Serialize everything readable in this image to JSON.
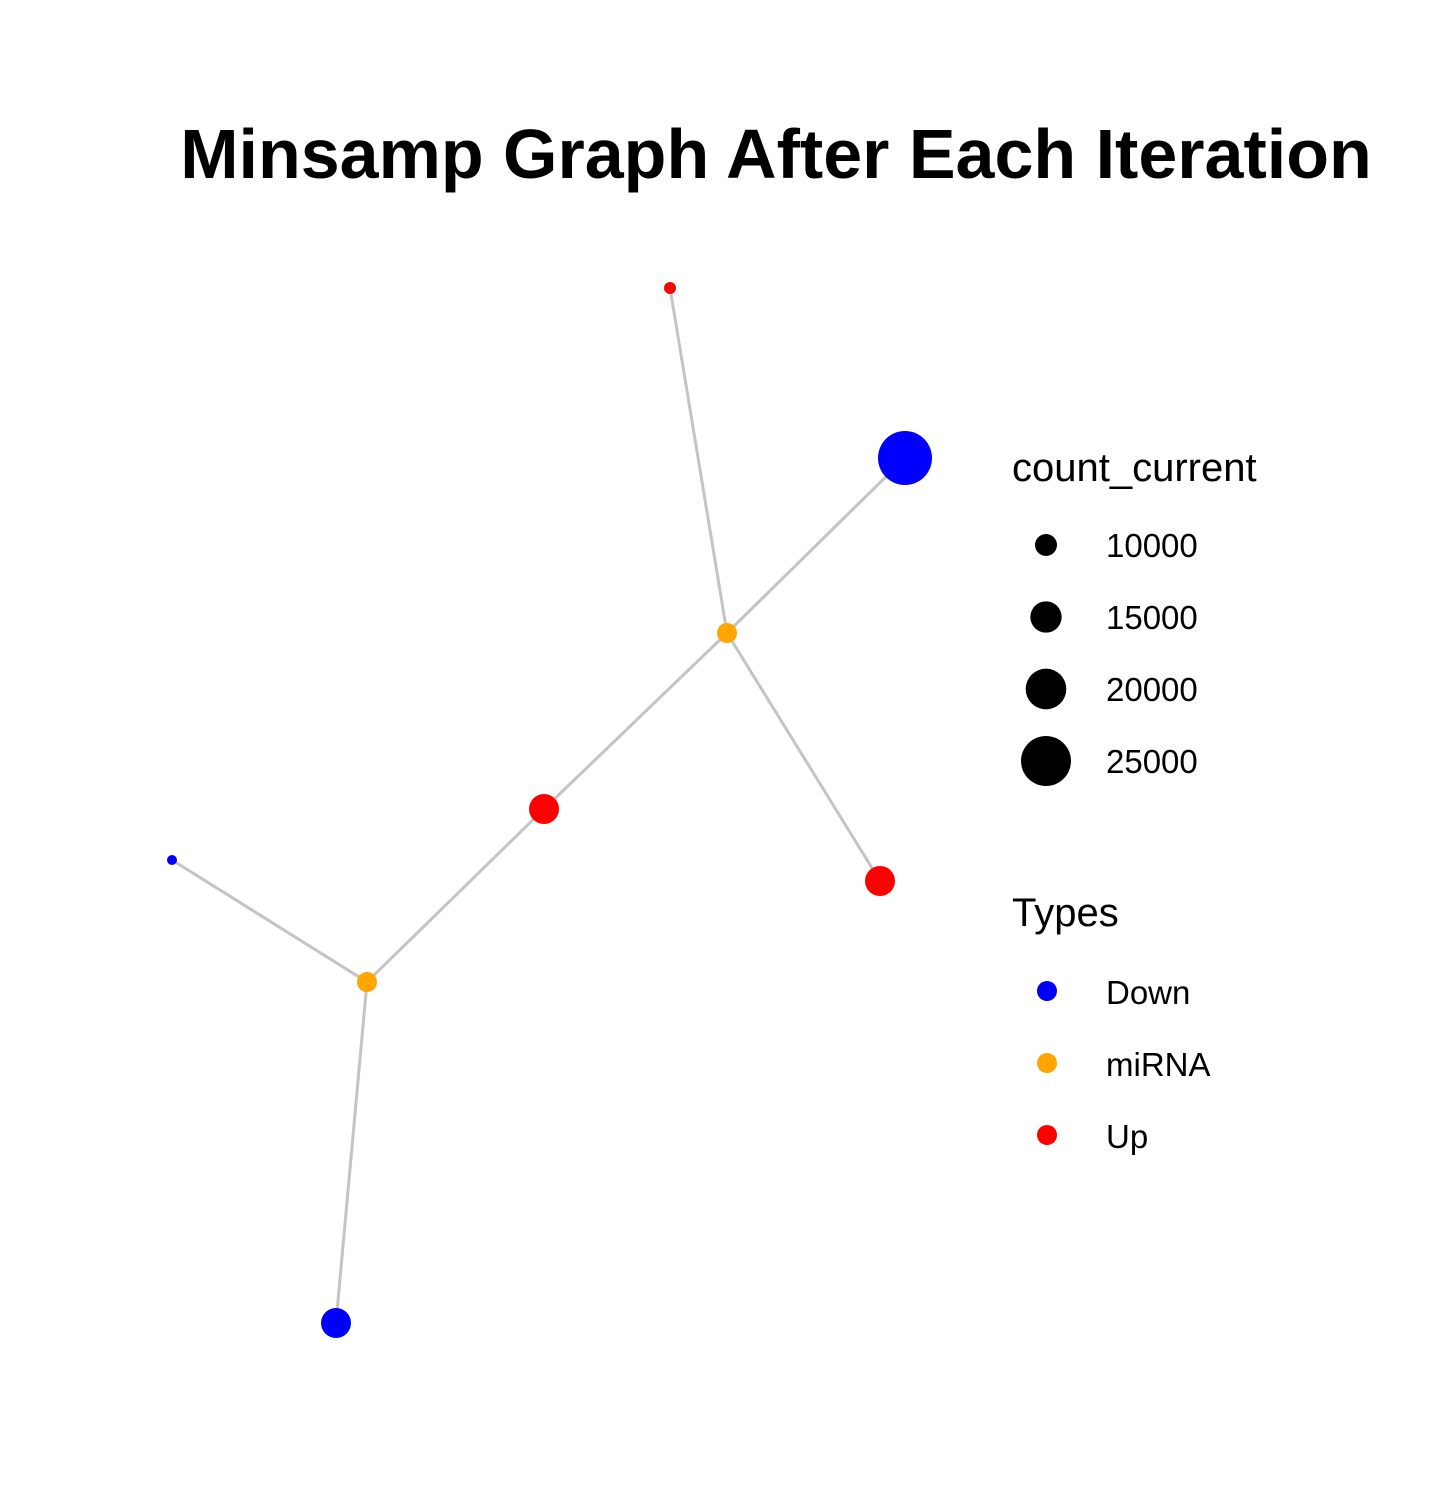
{
  "title": "Minsamp Graph After Each Iteration",
  "colors": {
    "edge": "#c4c4c4",
    "Down": "#0000ff",
    "miRNA": "#ffa500",
    "Up": "#ff0000",
    "size_legend": "#000000"
  },
  "legend": {
    "size": {
      "title": "count_current",
      "entries": [
        {
          "label": "10000",
          "value": 10000
        },
        {
          "label": "15000",
          "value": 15000
        },
        {
          "label": "20000",
          "value": 20000
        },
        {
          "label": "25000",
          "value": 25000
        }
      ]
    },
    "types": {
      "title": "Types",
      "entries": [
        {
          "label": "Down",
          "type": "Down"
        },
        {
          "label": "miRNA",
          "type": "miRNA"
        },
        {
          "label": "Up",
          "type": "Up"
        }
      ]
    }
  },
  "nodes": [
    {
      "id": "up-top",
      "type": "Up"
    },
    {
      "id": "down-large",
      "type": "Down"
    },
    {
      "id": "mirna-upper",
      "type": "miRNA"
    },
    {
      "id": "up-middle",
      "type": "Up"
    },
    {
      "id": "up-right",
      "type": "Up"
    },
    {
      "id": "down-small",
      "type": "Down"
    },
    {
      "id": "mirna-lower",
      "type": "miRNA"
    },
    {
      "id": "down-bottom",
      "type": "Down"
    }
  ],
  "edges": [
    {
      "source": "mirna-upper",
      "target": "up-top"
    },
    {
      "source": "mirna-upper",
      "target": "down-large"
    },
    {
      "source": "mirna-upper",
      "target": "up-right"
    },
    {
      "source": "mirna-upper",
      "target": "up-middle"
    },
    {
      "source": "up-middle",
      "target": "mirna-lower"
    },
    {
      "source": "mirna-lower",
      "target": "down-small"
    },
    {
      "source": "mirna-lower",
      "target": "down-bottom"
    }
  ]
}
